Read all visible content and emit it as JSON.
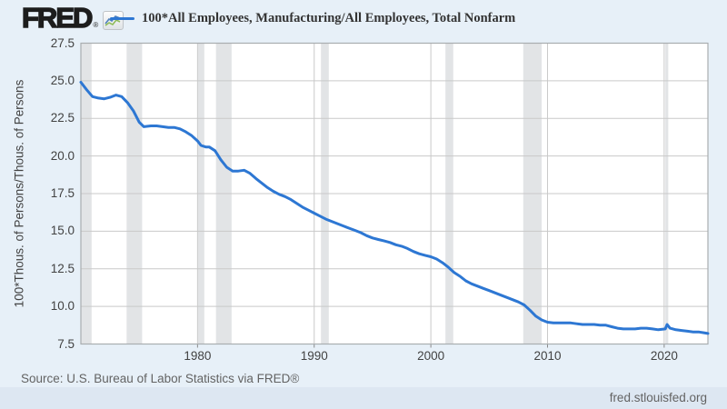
{
  "header": {
    "logo_text": "FRED",
    "registered_mark": "®",
    "legend_label": "100*All Employees, Manufacturing/All Employees, Total Nonfarm"
  },
  "footer": {
    "source_text": "Source: U.S. Bureau of Labor Statistics via FRED®",
    "site_url": "fred.stlouisfed.org"
  },
  "icons": {
    "logo_icon": "sparkline-chart-icon"
  },
  "colors": {
    "background": "#e7f0f8",
    "plot_background": "#ffffff",
    "series_line": "#2d77d3",
    "gridline": "#c9c9c9",
    "plot_border": "#a9adb0",
    "recession_band": "#e2e4e6",
    "tick_mark": "#8a8a8a",
    "logo_color": "#1d1d1d",
    "text_primary": "#333333",
    "text_axis": "#424242",
    "text_secondary": "#636363",
    "footer_strip": "#dde7f2"
  },
  "chart_data": {
    "type": "line",
    "title": "100*All Employees, Manufacturing/All Employees, Total Nonfarm",
    "xlabel": "",
    "ylabel": "100*Thous. of Persons/Thous. of Persons",
    "x_range": [
      1970,
      2023.75
    ],
    "y_range": [
      7.5,
      27.5
    ],
    "x_ticks": [
      1980,
      1990,
      2000,
      2010,
      2020
    ],
    "y_ticks": [
      7.5,
      10.0,
      12.5,
      15.0,
      17.5,
      20.0,
      22.5,
      25.0,
      27.5
    ],
    "grid": true,
    "legend_position": "top-left",
    "recession_bands": [
      [
        1970.0,
        1970.92
      ],
      [
        1973.92,
        1975.25
      ],
      [
        1980.04,
        1980.58
      ],
      [
        1981.58,
        1982.92
      ],
      [
        1990.58,
        1991.25
      ],
      [
        2001.25,
        2001.92
      ],
      [
        2007.92,
        2009.5
      ],
      [
        2020.1,
        2020.35
      ]
    ],
    "series": [
      {
        "name": "100*All Employees, Manufacturing/All Employees, Total Nonfarm",
        "color": "#2d77d3",
        "units": "100*Thous. of Persons/Thous. of Persons",
        "points": [
          [
            1970,
            24.9
          ],
          [
            1970.5,
            24.4
          ],
          [
            1971,
            23.95
          ],
          [
            1971.5,
            23.85
          ],
          [
            1972,
            23.8
          ],
          [
            1972.5,
            23.9
          ],
          [
            1973,
            24.05
          ],
          [
            1973.5,
            23.95
          ],
          [
            1974,
            23.55
          ],
          [
            1974.5,
            23.0
          ],
          [
            1975,
            22.25
          ],
          [
            1975.4,
            21.95
          ],
          [
            1976,
            22.0
          ],
          [
            1976.5,
            22.0
          ],
          [
            1977,
            21.95
          ],
          [
            1977.5,
            21.9
          ],
          [
            1978,
            21.9
          ],
          [
            1978.5,
            21.8
          ],
          [
            1979,
            21.6
          ],
          [
            1979.5,
            21.35
          ],
          [
            1980,
            21.0
          ],
          [
            1980.3,
            20.7
          ],
          [
            1980.7,
            20.6
          ],
          [
            1981,
            20.6
          ],
          [
            1981.5,
            20.35
          ],
          [
            1982,
            19.75
          ],
          [
            1982.5,
            19.25
          ],
          [
            1983,
            19.0
          ],
          [
            1983.5,
            19.0
          ],
          [
            1984,
            19.05
          ],
          [
            1984.5,
            18.85
          ],
          [
            1985,
            18.5
          ],
          [
            1985.5,
            18.2
          ],
          [
            1986,
            17.9
          ],
          [
            1986.5,
            17.65
          ],
          [
            1987,
            17.45
          ],
          [
            1987.5,
            17.3
          ],
          [
            1988,
            17.1
          ],
          [
            1988.5,
            16.85
          ],
          [
            1989,
            16.6
          ],
          [
            1989.5,
            16.4
          ],
          [
            1990,
            16.2
          ],
          [
            1990.5,
            16.0
          ],
          [
            1991,
            15.8
          ],
          [
            1991.5,
            15.65
          ],
          [
            1992,
            15.5
          ],
          [
            1992.5,
            15.35
          ],
          [
            1993,
            15.2
          ],
          [
            1993.5,
            15.05
          ],
          [
            1994,
            14.9
          ],
          [
            1994.5,
            14.7
          ],
          [
            1995,
            14.55
          ],
          [
            1995.5,
            14.45
          ],
          [
            1996,
            14.35
          ],
          [
            1996.5,
            14.25
          ],
          [
            1997,
            14.1
          ],
          [
            1997.5,
            14.0
          ],
          [
            1998,
            13.85
          ],
          [
            1998.5,
            13.65
          ],
          [
            1999,
            13.5
          ],
          [
            1999.5,
            13.4
          ],
          [
            2000,
            13.3
          ],
          [
            2000.5,
            13.15
          ],
          [
            2001,
            12.9
          ],
          [
            2001.5,
            12.6
          ],
          [
            2002,
            12.25
          ],
          [
            2002.5,
            12.0
          ],
          [
            2003,
            11.7
          ],
          [
            2003.5,
            11.5
          ],
          [
            2004,
            11.35
          ],
          [
            2004.5,
            11.2
          ],
          [
            2005,
            11.05
          ],
          [
            2005.5,
            10.9
          ],
          [
            2006,
            10.75
          ],
          [
            2006.5,
            10.6
          ],
          [
            2007,
            10.45
          ],
          [
            2007.5,
            10.3
          ],
          [
            2008,
            10.1
          ],
          [
            2008.5,
            9.75
          ],
          [
            2009,
            9.35
          ],
          [
            2009.5,
            9.1
          ],
          [
            2010,
            8.95
          ],
          [
            2010.5,
            8.9
          ],
          [
            2011,
            8.9
          ],
          [
            2011.5,
            8.9
          ],
          [
            2012,
            8.9
          ],
          [
            2012.5,
            8.85
          ],
          [
            2013,
            8.8
          ],
          [
            2013.5,
            8.8
          ],
          [
            2014,
            8.8
          ],
          [
            2014.5,
            8.75
          ],
          [
            2015,
            8.75
          ],
          [
            2015.5,
            8.65
          ],
          [
            2016,
            8.55
          ],
          [
            2016.5,
            8.5
          ],
          [
            2017,
            8.5
          ],
          [
            2017.5,
            8.5
          ],
          [
            2018,
            8.55
          ],
          [
            2018.5,
            8.55
          ],
          [
            2019,
            8.5
          ],
          [
            2019.5,
            8.45
          ],
          [
            2020.1,
            8.5
          ],
          [
            2020.25,
            8.8
          ],
          [
            2020.5,
            8.55
          ],
          [
            2021,
            8.45
          ],
          [
            2021.5,
            8.4
          ],
          [
            2022,
            8.35
          ],
          [
            2022.5,
            8.3
          ],
          [
            2023,
            8.3
          ],
          [
            2023.4,
            8.25
          ],
          [
            2023.75,
            8.2
          ]
        ]
      }
    ]
  }
}
